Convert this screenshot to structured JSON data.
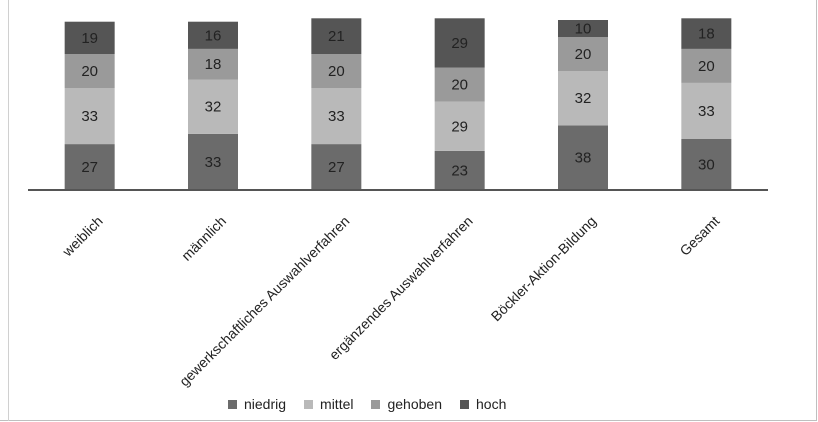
{
  "chart_data": {
    "type": "bar",
    "stacked": true,
    "categories": [
      "weiblich",
      "männlich",
      "gewerkschaftliches Auswahlverfahren",
      "ergänzendes Auswahlverfahren",
      "Böckler-Aktion-Bildung",
      "Gesamt"
    ],
    "series": [
      {
        "name": "niedrig",
        "values": [
          27,
          33,
          27,
          23,
          38,
          30
        ],
        "color": "#6b6b6b"
      },
      {
        "name": "mittel",
        "values": [
          33,
          32,
          33,
          29,
          32,
          33
        ],
        "color": "#b9b9b9"
      },
      {
        "name": "gehoben",
        "values": [
          20,
          18,
          20,
          20,
          20,
          20
        ],
        "color": "#9a9a9a"
      },
      {
        "name": "hoch",
        "values": [
          19,
          16,
          21,
          29,
          10,
          18
        ],
        "color": "#555555"
      }
    ],
    "ylim": [
      0,
      100
    ],
    "grid": false,
    "legend_position": "bottom"
  }
}
